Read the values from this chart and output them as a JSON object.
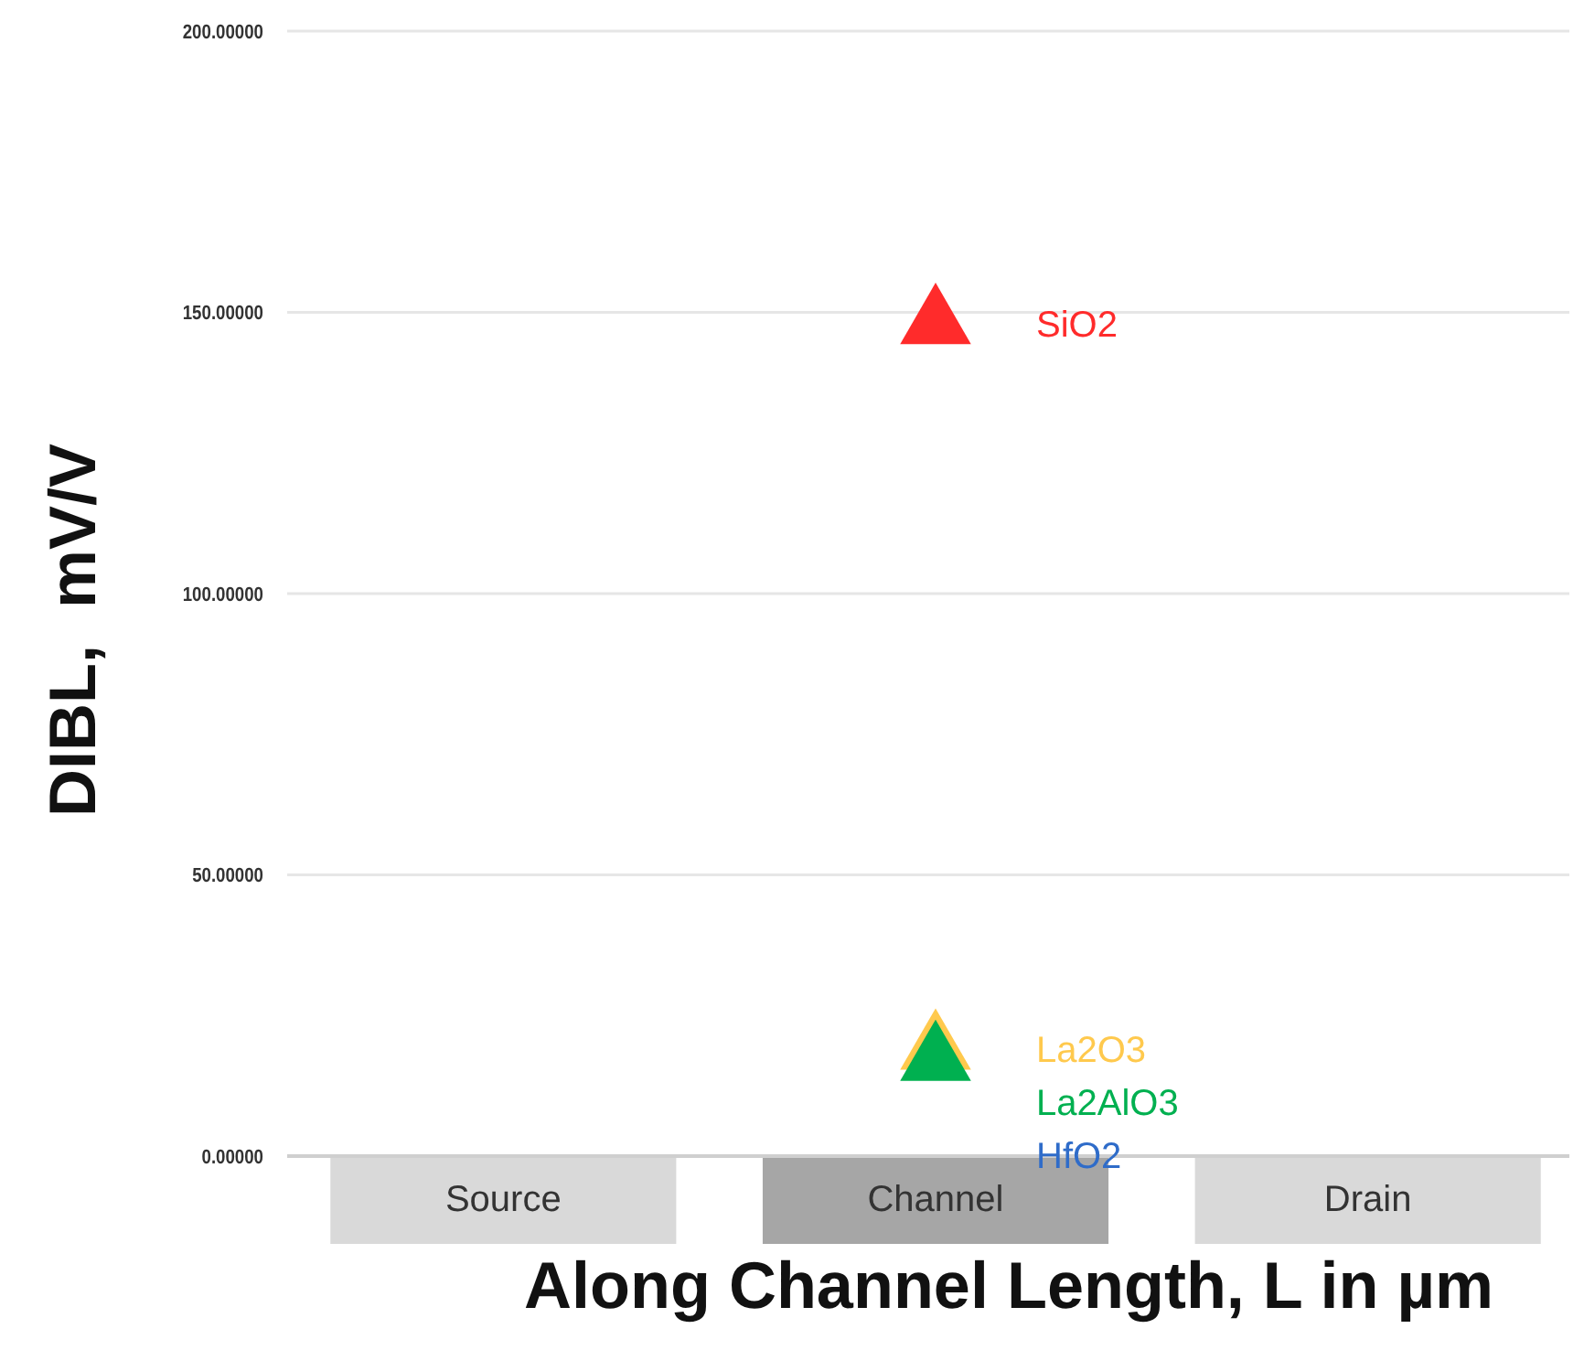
{
  "chart_data": {
    "type": "scatter",
    "xlabel": "Along Channel Length, L in µm",
    "ylabel": "DIBL,  mV/V",
    "categories": [
      "Source",
      "Channel",
      "Drain"
    ],
    "series": [
      {
        "name": "SiO2",
        "color": "#ff2b2b",
        "x": [
          "Channel"
        ],
        "values": [
          148
        ]
      },
      {
        "name": "La2O3",
        "color": "#ffc94d",
        "x": [
          "Channel"
        ],
        "values": [
          19
        ]
      },
      {
        "name": "La2AlO3",
        "color": "#00b050",
        "x": [
          "Channel"
        ],
        "values": [
          17
        ]
      },
      {
        "name": "HfO2",
        "color": "#2f6cc9",
        "x": [
          "Channel"
        ],
        "values": [
          null
        ]
      }
    ],
    "ylim": [
      0,
      200
    ],
    "yticks": [
      {
        "value": 0,
        "label": "0.00000"
      },
      {
        "value": 50,
        "label": "50.00000"
      },
      {
        "value": 100,
        "label": "100.00000"
      },
      {
        "value": 150,
        "label": "150.00000"
      },
      {
        "value": 200,
        "label": "200.00000"
      }
    ],
    "grid": "y",
    "marker": "triangle"
  }
}
